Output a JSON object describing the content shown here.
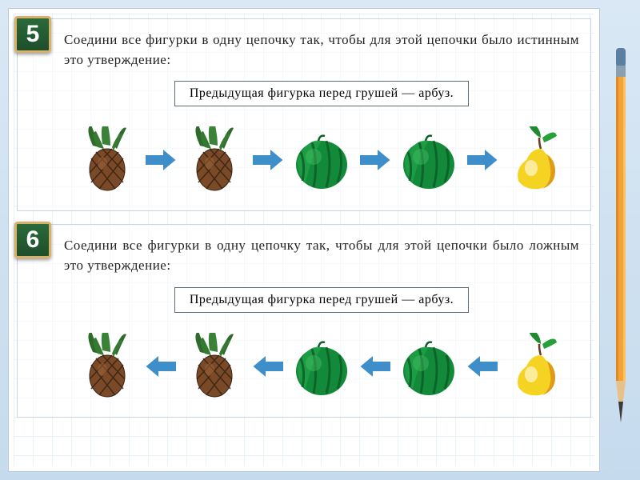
{
  "colors": {
    "arrow_fill": "#3e8fc9",
    "arrow_stroke": "#ffffff",
    "badge_bg": "#205c30",
    "badge_border": "#d8b06a",
    "pineapple_body": "#7a4a28",
    "pineapple_crown": "#2e6b2a",
    "watermelon": "#138a3a",
    "watermelon_stripe": "#0c5e26",
    "pear_yellow": "#f5d322",
    "pear_shade": "#e09a1a",
    "pear_leaf": "#1f8a2e",
    "pencil_body": "#f2a33a",
    "pencil_tip": "#e6c28a",
    "pencil_lead": "#3a3a3a",
    "pencil_ferrule": "#8aa0b0",
    "pencil_eraser": "#5a7fa0"
  },
  "task5": {
    "number": "5",
    "instruction": "Соедини все фигурки в одну цепочку так, чтобы для этой цепочки было истинным это утверждение:",
    "rule": "Предыдущая фигурка перед грушей — арбуз.",
    "chain": [
      "pineapple",
      "arrow-r",
      "pineapple",
      "arrow-r",
      "watermelon",
      "arrow-r",
      "watermelon",
      "arrow-r",
      "pear"
    ]
  },
  "task6": {
    "number": "6",
    "instruction": "Соедини все фигурки в одну цепочку так, чтобы для этой цепочки было ложным это утверждение:",
    "rule": "Предыдущая фигурка перед грушей — арбуз.",
    "chain": [
      "pineapple",
      "arrow-l",
      "pineapple",
      "arrow-l",
      "watermelon",
      "arrow-l",
      "watermelon",
      "arrow-l",
      "pear"
    ]
  }
}
